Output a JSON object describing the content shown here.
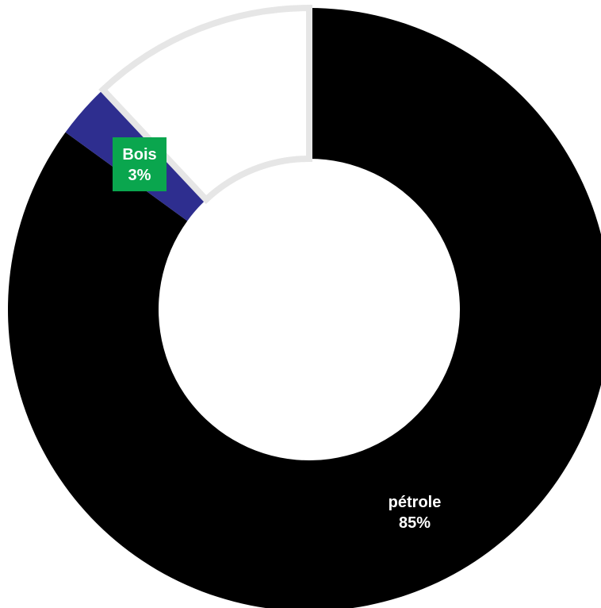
{
  "chart_data": {
    "type": "pie",
    "variant": "donut",
    "title": "",
    "slices": [
      {
        "label": "pétrole",
        "value": 85,
        "value_label": "85%",
        "color": "#000000",
        "label_box_color": null
      },
      {
        "label": "Bois",
        "value": 3,
        "value_label": "3%",
        "color": "#2e2e8f",
        "label_box_color": "#0aa64e"
      },
      {
        "label": "",
        "value": 12,
        "value_label": "",
        "color": "#ffffff",
        "label_box_color": null
      }
    ],
    "slice_border_color": "#e6e6e6",
    "start_angle_deg": 0,
    "direction": "clockwise",
    "legend": "none"
  }
}
